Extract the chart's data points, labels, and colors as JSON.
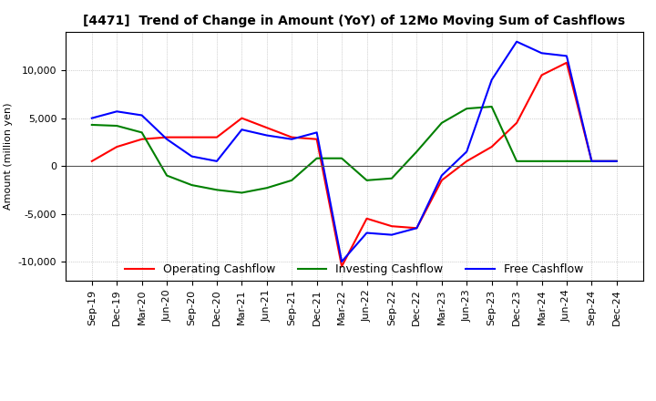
{
  "title": "[4471]  Trend of Change in Amount (YoY) of 12Mo Moving Sum of Cashflows",
  "ylabel": "Amount (million yen)",
  "ylim": [
    -12000,
    14000
  ],
  "yticks": [
    -10000,
    -5000,
    0,
    5000,
    10000
  ],
  "x_labels": [
    "Sep-19",
    "Dec-19",
    "Mar-20",
    "Jun-20",
    "Sep-20",
    "Dec-20",
    "Mar-21",
    "Jun-21",
    "Sep-21",
    "Dec-21",
    "Mar-22",
    "Jun-22",
    "Sep-22",
    "Dec-22",
    "Mar-23",
    "Jun-23",
    "Sep-23",
    "Dec-23",
    "Mar-24",
    "Jun-24",
    "Sep-24",
    "Dec-24"
  ],
  "operating": [
    500,
    2000,
    2800,
    3000,
    3000,
    3000,
    5000,
    4000,
    3000,
    2800,
    -10500,
    -5500,
    -6300,
    -6500,
    -1500,
    500,
    2000,
    4500,
    9500,
    10800,
    500,
    500
  ],
  "investing": [
    4300,
    4200,
    3500,
    -1000,
    -2000,
    -2500,
    -2800,
    -2300,
    -1500,
    800,
    800,
    -1500,
    -1300,
    1500,
    4500,
    6000,
    6200,
    500,
    500,
    500,
    500,
    500
  ],
  "free": [
    5000,
    5700,
    5300,
    2800,
    1000,
    500,
    3800,
    3200,
    2800,
    3500,
    -10000,
    -7000,
    -7200,
    -6500,
    -1000,
    1500,
    9000,
    13000,
    11800,
    11500,
    500,
    500
  ],
  "operating_color": "#ff0000",
  "investing_color": "#008000",
  "free_color": "#0000ff",
  "background_color": "#ffffff",
  "grid_color": "#aaaaaa",
  "title_fontsize": 10,
  "axis_fontsize": 8,
  "legend_fontsize": 9
}
